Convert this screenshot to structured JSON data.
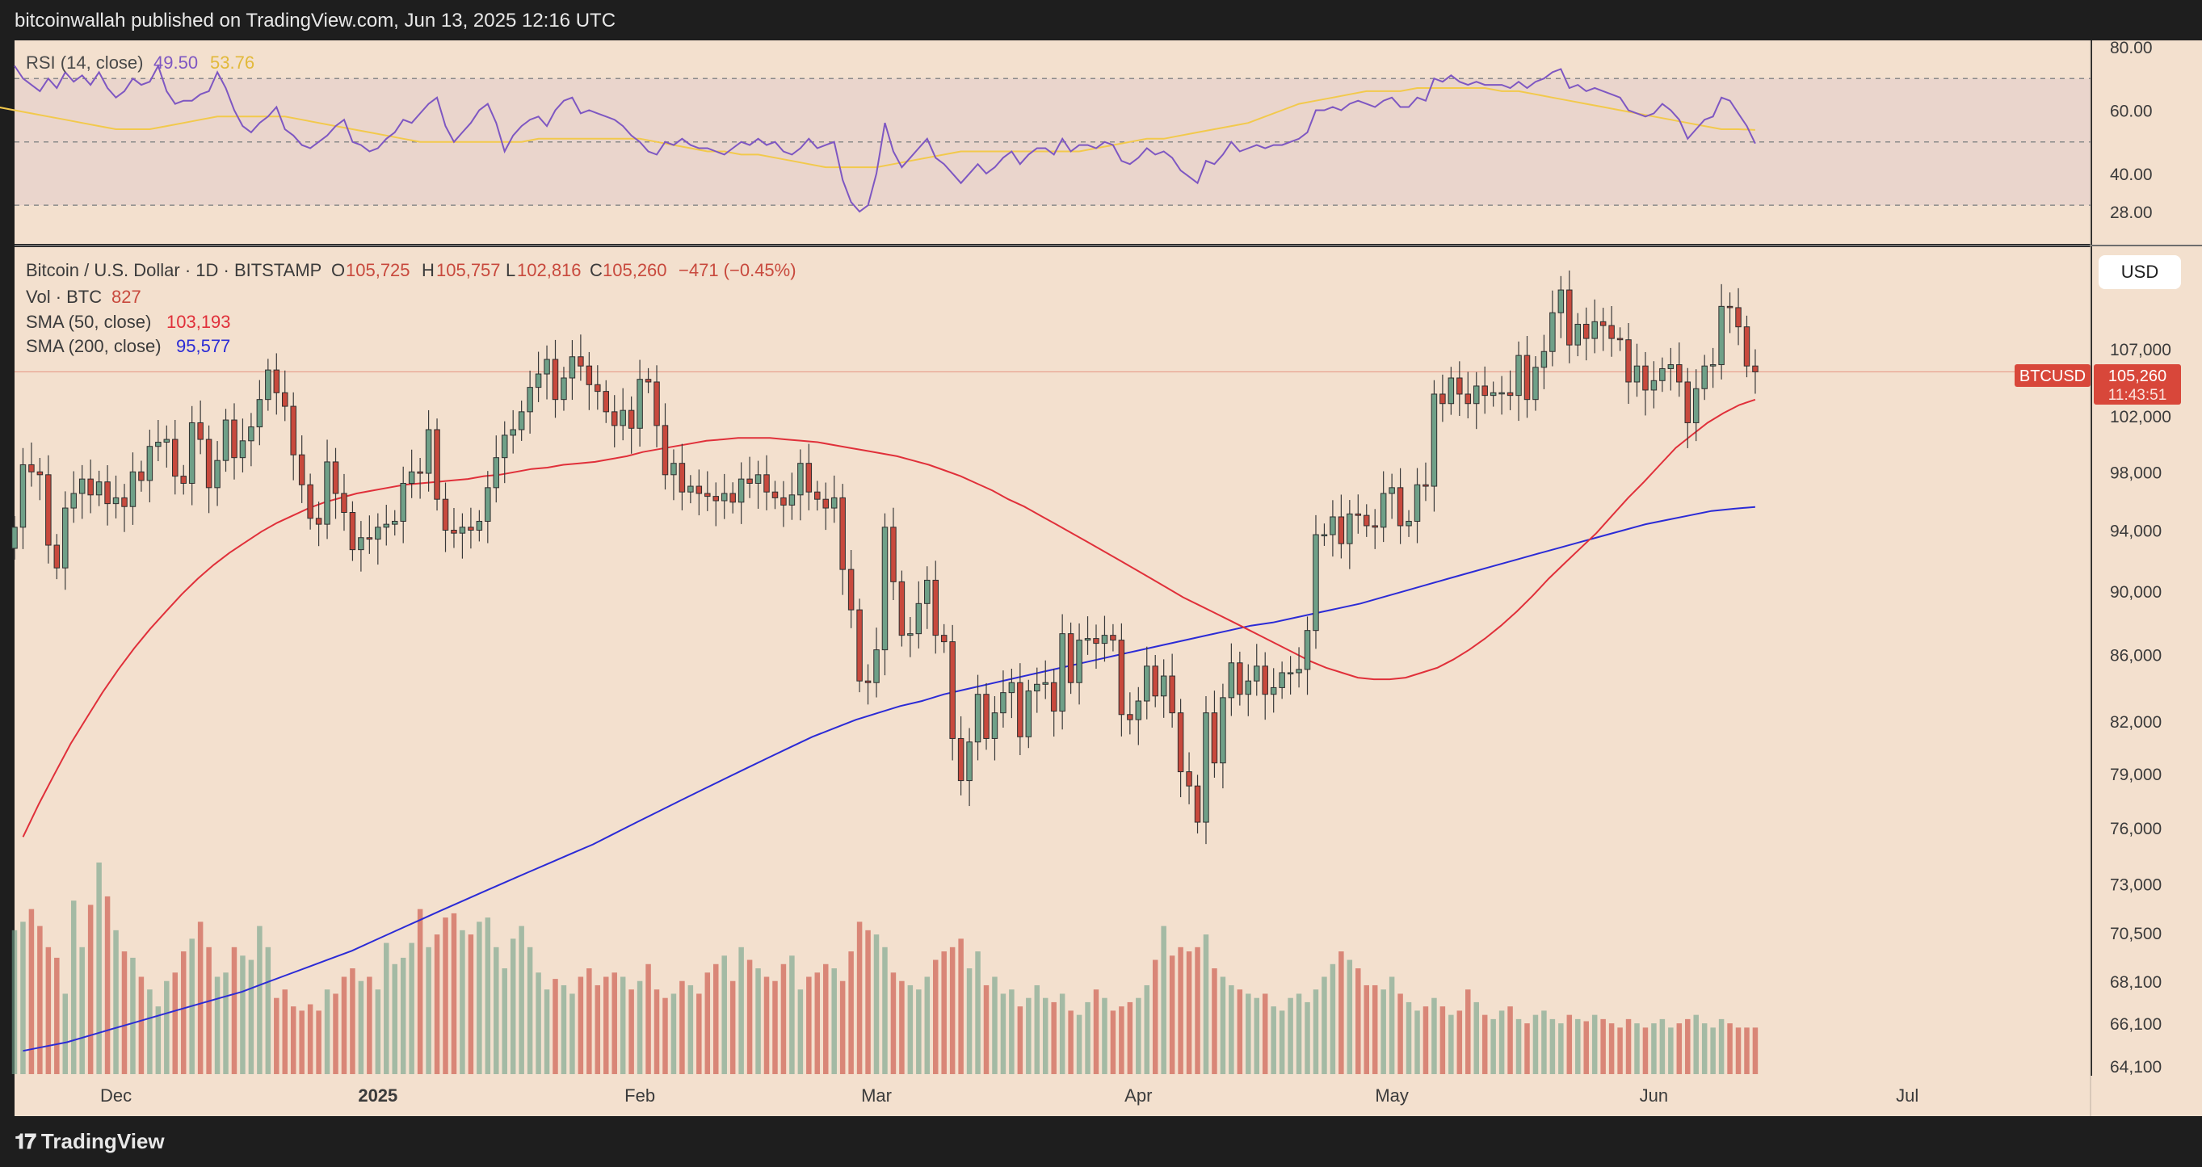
{
  "header": {
    "published": "bitcoinwallah published on TradingView.com, Jun 13, 2025 12:16 UTC"
  },
  "footer": {
    "brand": "TradingView"
  },
  "usd_button": "USD",
  "colors": {
    "background": "#f3e0ce",
    "up": "#6fa088",
    "down": "#c8493d",
    "sma50": "#e0303a",
    "sma200": "#2b2bd6",
    "rsi": "#7e57c2",
    "rsi_ma": "#f2c94c"
  },
  "rsi_panel": {
    "title": "RSI (14, close)",
    "value": "49.50",
    "ma_value": "53.76",
    "axis_labels": [
      "80.00",
      "60.00",
      "40.00",
      "28.00"
    ],
    "upper_band": 70,
    "middle_band": 50,
    "lower_band": 30
  },
  "legend": {
    "symbol": "Bitcoin / U.S. Dollar · 1D · BITSTAMP",
    "o_label": "O",
    "o": "105,725",
    "h_label": "H",
    "h": "105,757",
    "l_label": "L",
    "l": "102,816",
    "c_label": "C",
    "c": "105,260",
    "change": "−471 (−0.45%)",
    "vol_label": "Vol · BTC",
    "vol": "827",
    "sma50_label": "SMA (50, close)",
    "sma50": "103,193",
    "sma200_label": "SMA (200, close)",
    "sma200": "95,577"
  },
  "price_tag": {
    "symbol": "BTCUSD",
    "price": "105,260",
    "countdown": "11:43:51"
  },
  "chart_data": {
    "type": "candlestick",
    "y_axis_labels": [
      "107,000",
      "102,000",
      "98,000",
      "94,000",
      "90,000",
      "86,000",
      "82,000",
      "79,000",
      "76,000",
      "73,000",
      "70,500",
      "68,100",
      "66,100",
      "64,100"
    ],
    "y_scale": "log",
    "x_axis_labels": [
      "Dec",
      "2025",
      "Feb",
      "Mar",
      "Apr",
      "May",
      "Jun",
      "Jul"
    ],
    "x_label_dates": [
      "2024-12-01",
      "2025-01-01",
      "2025-02-01",
      "2025-03-01",
      "2025-04-01",
      "2025-05-01",
      "2025-06-01",
      "2025-07-01"
    ],
    "x_range": [
      "2024-11-19",
      "2025-07-20"
    ],
    "grid": false,
    "candles_first_date": "2024-11-20",
    "candles_last_date": "2025-06-13",
    "closes": [
      94200,
      98500,
      98000,
      97800,
      93000,
      91500,
      95500,
      96500,
      97500,
      96400,
      97300,
      95800,
      96200,
      95600,
      98000,
      97400,
      99800,
      100100,
      100300,
      97700,
      97200,
      101500,
      100300,
      96900,
      98800,
      101700,
      99000,
      100200,
      101200,
      103200,
      105400,
      103700,
      102700,
      99200,
      97100,
      94800,
      94400,
      98700,
      96500,
      95200,
      92700,
      93500,
      93400,
      94200,
      94400,
      94600,
      97200,
      98000,
      97900,
      101000,
      96100,
      94000,
      93800,
      94200,
      94000,
      94600,
      96900,
      99000,
      100600,
      101000,
      102300,
      104100,
      105100,
      106200,
      103200,
      104800,
      106400,
      105700,
      104300,
      103800,
      102300,
      101300,
      102400,
      101100,
      104700,
      104500,
      101300,
      97800,
      98600,
      96600,
      97000,
      96500,
      96300,
      96000,
      96500,
      95900,
      97500,
      97200,
      97800,
      96600,
      96200,
      95700,
      96400,
      98600,
      96600,
      96100,
      95500,
      96200,
      91400,
      88800,
      84400,
      84300,
      86300,
      94200,
      90600,
      87200,
      87300,
      89200,
      90700,
      87200,
      86800,
      81000,
      78600,
      80800,
      83600,
      81000,
      82500,
      83700,
      84300,
      81100,
      83800,
      84200,
      84300,
      82600,
      87300,
      84300,
      86900,
      87000,
      86700,
      87200,
      86900,
      82400,
      82100,
      83200,
      85300,
      83500,
      84700,
      82500,
      79100,
      78300,
      76300,
      82500,
      79600,
      83400,
      85500,
      83600,
      84400,
      85300,
      83600,
      84000,
      84900,
      84900,
      85100,
      87500,
      93700,
      93700,
      94900,
      93100,
      95100,
      95000,
      94300,
      94200,
      96500,
      96900,
      94300,
      94600,
      97100,
      97000,
      103600,
      102900,
      104800,
      103600,
      102900,
      104200,
      103500,
      103700,
      103700,
      103500,
      106500,
      103200,
      105600,
      106800,
      109800,
      111600,
      107300,
      108900,
      107800,
      109100,
      108800,
      107800,
      107700,
      104500,
      105700,
      103900,
      104600,
      105500,
      105800,
      104500,
      101500,
      104000,
      105700,
      105800,
      110300,
      110200,
      108700,
      105700,
      105260
    ],
    "sma50_first_date": "2024-11-20",
    "sma50": [
      75500,
      77300,
      79000,
      80700,
      82200,
      83700,
      85100,
      86400,
      87600,
      88700,
      89800,
      90800,
      91700,
      92500,
      93200,
      93900,
      94500,
      95000,
      95500,
      95900,
      96200,
      96500,
      96700,
      96900,
      97100,
      97200,
      97300,
      97400,
      97500,
      97700,
      97800,
      98000,
      98200,
      98300,
      98500,
      98600,
      98700,
      98900,
      99100,
      99400,
      99600,
      99800,
      100000,
      100200,
      100300,
      100400,
      100400,
      100400,
      100300,
      100200,
      100100,
      99900,
      99700,
      99500,
      99300,
      99100,
      98800,
      98500,
      98100,
      97700,
      97200,
      96700,
      96100,
      95600,
      95000,
      94400,
      93800,
      93200,
      92600,
      92000,
      91400,
      90800,
      90200,
      89600,
      89100,
      88600,
      88100,
      87600,
      87100,
      86600,
      86100,
      85600,
      85200,
      84900,
      84600,
      84500,
      84500,
      84600,
      84900,
      85200,
      85700,
      86300,
      87000,
      87800,
      88700,
      89700,
      90800,
      91800,
      92800,
      93800,
      95000,
      96200,
      97300,
      98500,
      99700,
      100600,
      101500,
      102200,
      102800,
      103193
    ],
    "sma50_last_date": "2025-06-13",
    "sma200_first_date": "2024-11-20",
    "sma200": [
      64800,
      65000,
      65200,
      65500,
      65800,
      66100,
      66400,
      66700,
      67000,
      67300,
      67600,
      68000,
      68400,
      68800,
      69200,
      69600,
      70100,
      70600,
      71100,
      71600,
      72100,
      72600,
      73100,
      73600,
      74100,
      74600,
      75100,
      75700,
      76300,
      76900,
      77500,
      78100,
      78700,
      79300,
      79900,
      80500,
      81100,
      81600,
      82100,
      82500,
      82900,
      83200,
      83600,
      83900,
      84200,
      84500,
      84800,
      85100,
      85400,
      85700,
      86000,
      86300,
      86600,
      86900,
      87200,
      87500,
      87800,
      88000,
      88300,
      88600,
      88900,
      89200,
      89600,
      90000,
      90400,
      90800,
      91200,
      91600,
      92000,
      92400,
      92800,
      93200,
      93600,
      94000,
      94400,
      94700,
      95000,
      95300,
      95450,
      95577
    ],
    "sma200_last_date": "2025-06-13",
    "rsi": [
      74,
      70,
      68,
      66,
      70,
      67,
      72,
      69,
      71,
      68,
      72,
      67,
      64,
      66,
      70,
      68,
      69,
      74,
      66,
      62,
      63,
      63,
      65,
      66,
      72,
      67,
      60,
      55,
      53,
      56,
      58,
      61,
      54,
      52,
      49,
      48,
      50,
      52,
      55,
      57,
      50,
      49,
      47,
      48,
      51,
      53,
      57,
      56,
      59,
      62,
      64,
      55,
      50,
      53,
      56,
      60,
      62,
      56,
      47,
      52,
      55,
      57,
      58,
      55,
      60,
      63,
      64,
      59,
      60,
      59,
      58,
      57,
      55,
      52,
      50,
      47,
      46,
      50,
      49,
      51,
      49,
      48,
      48,
      47,
      46,
      48,
      50,
      49,
      51,
      49,
      50,
      47,
      46,
      48,
      51,
      48,
      49,
      50,
      38,
      31,
      28,
      30,
      40,
      56,
      47,
      42,
      45,
      48,
      51,
      45,
      43,
      40,
      37,
      40,
      43,
      40,
      42,
      45,
      47,
      43,
      46,
      48,
      48,
      46,
      51,
      47,
      49,
      49,
      48,
      50,
      49,
      44,
      43,
      45,
      48,
      46,
      47,
      45,
      41,
      39,
      37,
      44,
      43,
      46,
      50,
      47,
      48,
      49,
      48,
      49,
      49,
      50,
      51,
      53,
      60,
      60,
      61,
      60,
      62,
      63,
      62,
      61,
      63,
      64,
      61,
      61,
      64,
      63,
      70,
      69,
      71,
      69,
      68,
      69,
      68,
      68,
      68,
      67,
      69,
      67,
      69,
      70,
      72,
      73,
      67,
      68,
      66,
      67,
      66,
      65,
      64,
      60,
      59,
      58,
      59,
      62,
      60,
      57,
      51,
      54,
      57,
      58,
      64,
      63,
      59,
      55,
      49.5
    ],
    "rsi_ma": [
      71,
      70,
      69,
      68,
      67,
      67,
      66,
      65,
      64,
      63,
      62,
      61,
      60,
      59,
      58,
      57,
      56,
      55,
      54,
      54,
      54,
      55,
      56,
      57,
      58,
      58,
      58,
      58,
      58,
      57,
      56,
      55,
      54,
      53,
      52,
      51,
      50,
      50,
      50,
      50,
      50,
      50,
      50,
      51,
      51,
      51,
      51,
      51,
      51,
      51,
      50,
      49,
      48,
      47,
      47,
      46,
      46,
      45,
      44,
      43,
      42,
      42,
      42,
      42,
      43,
      44,
      45,
      46,
      47,
      47,
      47,
      47,
      47,
      47,
      47,
      47,
      48,
      49,
      50,
      51,
      51,
      52,
      53,
      54,
      55,
      56,
      58,
      60,
      62,
      63,
      64,
      65,
      66,
      66,
      66,
      67,
      67,
      67,
      67,
      67,
      66,
      66,
      65,
      64,
      63,
      62,
      61,
      60,
      59,
      58,
      57,
      56,
      55,
      54,
      54,
      53.76
    ]
  },
  "volume_data": {
    "values": [
      0.68,
      0.72,
      0.78,
      0.7,
      0.6,
      0.55,
      0.38,
      0.82,
      0.6,
      0.8,
      1.0,
      0.84,
      0.68,
      0.58,
      0.55,
      0.46,
      0.4,
      0.32,
      0.44,
      0.48,
      0.58,
      0.64,
      0.72,
      0.6,
      0.46,
      0.48,
      0.6,
      0.56,
      0.54,
      0.7,
      0.6,
      0.36,
      0.4,
      0.32,
      0.3,
      0.33,
      0.3,
      0.4,
      0.38,
      0.46,
      0.5,
      0.44,
      0.46,
      0.4,
      0.62,
      0.52,
      0.55,
      0.62,
      0.78,
      0.6,
      0.66,
      0.74,
      0.76,
      0.68,
      0.66,
      0.72,
      0.74,
      0.6,
      0.5,
      0.64,
      0.7,
      0.6,
      0.48,
      0.4,
      0.45,
      0.42,
      0.38,
      0.46,
      0.5,
      0.42,
      0.46,
      0.48,
      0.46,
      0.4,
      0.44,
      0.52,
      0.4,
      0.36,
      0.38,
      0.44,
      0.42,
      0.38,
      0.48,
      0.52,
      0.56,
      0.44,
      0.6,
      0.54,
      0.5,
      0.46,
      0.44,
      0.52,
      0.56,
      0.4,
      0.46,
      0.48,
      0.52,
      0.5,
      0.44,
      0.58,
      0.72,
      0.68,
      0.66,
      0.6,
      0.48,
      0.44,
      0.42,
      0.4,
      0.46,
      0.54,
      0.58,
      0.6,
      0.64,
      0.5,
      0.58,
      0.42,
      0.46,
      0.38,
      0.4,
      0.32,
      0.36,
      0.42,
      0.36,
      0.34,
      0.38,
      0.3,
      0.28,
      0.34,
      0.4,
      0.36,
      0.3,
      0.32,
      0.34,
      0.36,
      0.42,
      0.54,
      0.7,
      0.56,
      0.6,
      0.58,
      0.6,
      0.66,
      0.5,
      0.46,
      0.42,
      0.4,
      0.38,
      0.36,
      0.38,
      0.32,
      0.3,
      0.36,
      0.38,
      0.34,
      0.4,
      0.46,
      0.52,
      0.58,
      0.54,
      0.5,
      0.42,
      0.42,
      0.4,
      0.46,
      0.38,
      0.34,
      0.3,
      0.32,
      0.36,
      0.32,
      0.28,
      0.3,
      0.4,
      0.34,
      0.28,
      0.26,
      0.3,
      0.32,
      0.26,
      0.24,
      0.28,
      0.3,
      0.26,
      0.24,
      0.28,
      0.26,
      0.25,
      0.28,
      0.26,
      0.24,
      0.22,
      0.26,
      0.24,
      0.22,
      0.24,
      0.26,
      0.22,
      0.24,
      0.26,
      0.28,
      0.24,
      0.22,
      0.26,
      0.24,
      0.22,
      0.22,
      0.22
    ]
  }
}
